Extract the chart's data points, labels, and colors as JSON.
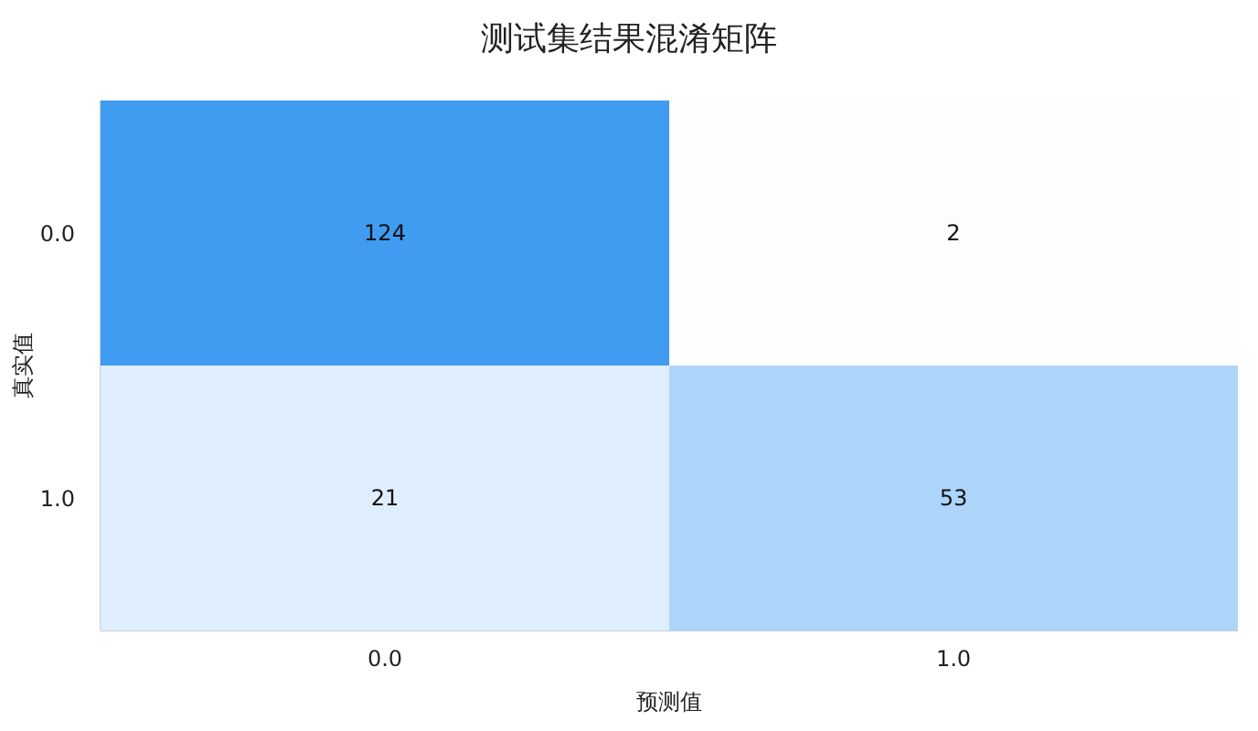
{
  "chart_data": {
    "type": "heatmap",
    "title": "测试集结果混淆矩阵",
    "xlabel": "预测值",
    "ylabel": "真实值",
    "categories": [
      "0.0",
      "1.0"
    ],
    "y_categories": [
      "0.0",
      "1.0"
    ],
    "cells": [
      [
        124,
        2
      ],
      [
        21,
        53
      ]
    ],
    "color": "#3f9cf0",
    "data_labels": true
  }
}
